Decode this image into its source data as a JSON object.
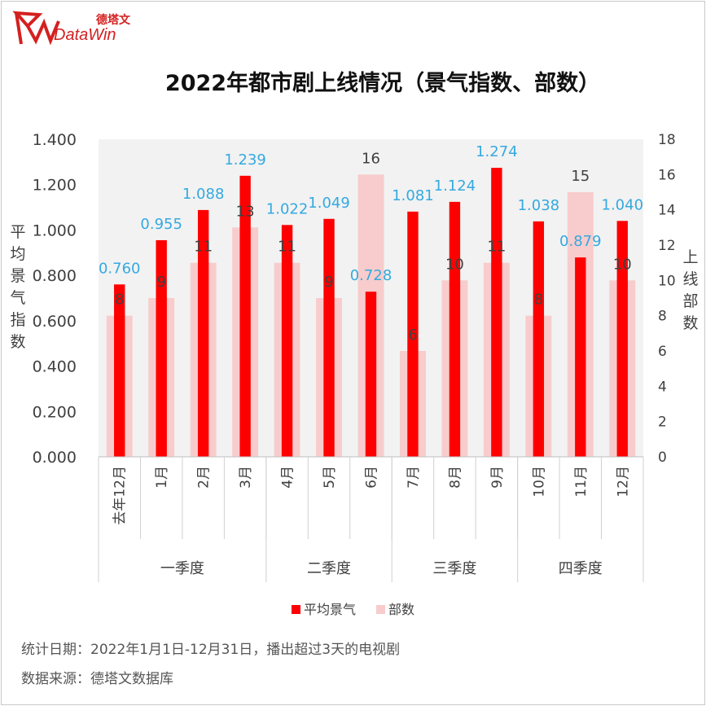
{
  "logo": {
    "cn": "德塔文",
    "en": "DataWin"
  },
  "chart_data": {
    "type": "bar",
    "title": "2022年都市剧上线情况（景气指数、部数）",
    "ylabel_left": "平均景气指数",
    "ylabel_right": "上线部数",
    "categories": [
      "去年12月",
      "1月",
      "2月",
      "3月",
      "4月",
      "5月",
      "6月",
      "7月",
      "8月",
      "9月",
      "10月",
      "11月",
      "12月"
    ],
    "groups": [
      {
        "label": "一季度",
        "span": 4
      },
      {
        "label": "二季度",
        "span": 3
      },
      {
        "label": "三季度",
        "span": 3
      },
      {
        "label": "四季度",
        "span": 3
      }
    ],
    "series": [
      {
        "name": "平均景气",
        "axis": "left",
        "color": "#ff0000",
        "values": [
          0.76,
          0.955,
          1.088,
          1.239,
          1.022,
          1.049,
          0.728,
          1.081,
          1.124,
          1.274,
          1.038,
          0.879,
          1.04
        ],
        "labels": [
          "0.760",
          "0.955",
          "1.088",
          "1.239",
          "1.022",
          "1.049",
          "0.728",
          "1.081",
          "1.124",
          "1.274",
          "1.038",
          "0.879",
          "1.040"
        ],
        "label_color": "#34a9e0"
      },
      {
        "name": "部数",
        "axis": "right",
        "color": "#f8cccc",
        "values": [
          8,
          9,
          11,
          13,
          11,
          9,
          16,
          6,
          10,
          11,
          8,
          15,
          10
        ],
        "labels": [
          "8",
          "9",
          "11",
          "13",
          "11",
          "9",
          "16",
          "6",
          "10",
          "11",
          "8",
          "15",
          "10"
        ],
        "label_color": "#404040"
      }
    ],
    "ylim_left": [
      0,
      1.4
    ],
    "yticks_left": [
      "0.000",
      "0.200",
      "0.400",
      "0.600",
      "0.800",
      "1.000",
      "1.200",
      "1.400"
    ],
    "ylim_right": [
      0,
      18
    ],
    "yticks_right": [
      "0",
      "2",
      "4",
      "6",
      "8",
      "10",
      "12",
      "14",
      "16",
      "18"
    ],
    "legend_position": "bottom",
    "plot_background": "#f2f2f2"
  },
  "footer": {
    "date_note": "统计日期：2022年1月1日-12月31日，播出超过3天的电视剧",
    "source_note": "数据来源：德塔文数据库"
  }
}
